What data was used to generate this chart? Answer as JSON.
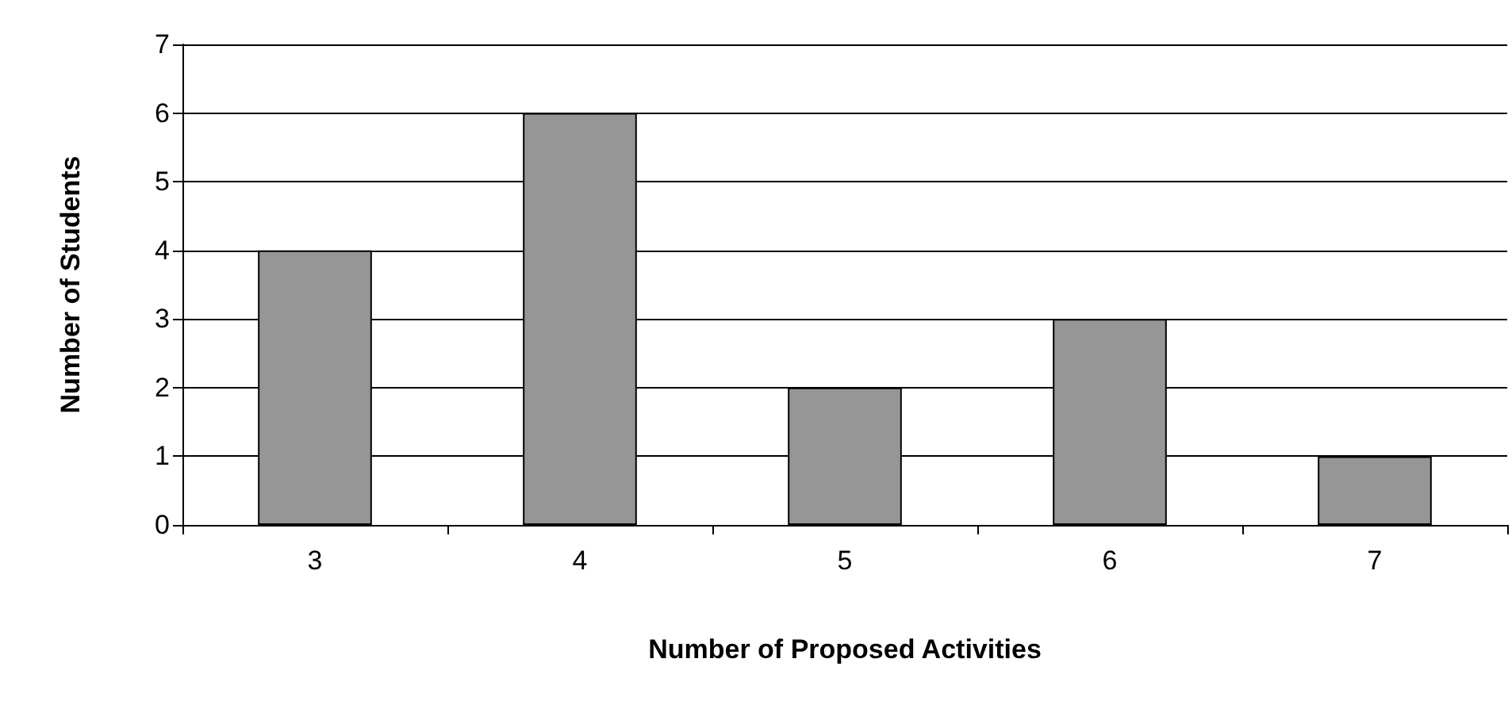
{
  "chart_data": {
    "type": "bar",
    "xlabel": "Number of Proposed Activities",
    "ylabel": "Number of Students",
    "categories": [
      "3",
      "4",
      "5",
      "6",
      "7"
    ],
    "series": [
      {
        "color": "#969696",
        "values": [
          4,
          6,
          2,
          3,
          1
        ]
      }
    ],
    "ylim": [
      0,
      7
    ],
    "yticks": [
      0,
      1,
      2,
      3,
      4,
      5,
      6,
      7
    ],
    "grid": "y"
  }
}
